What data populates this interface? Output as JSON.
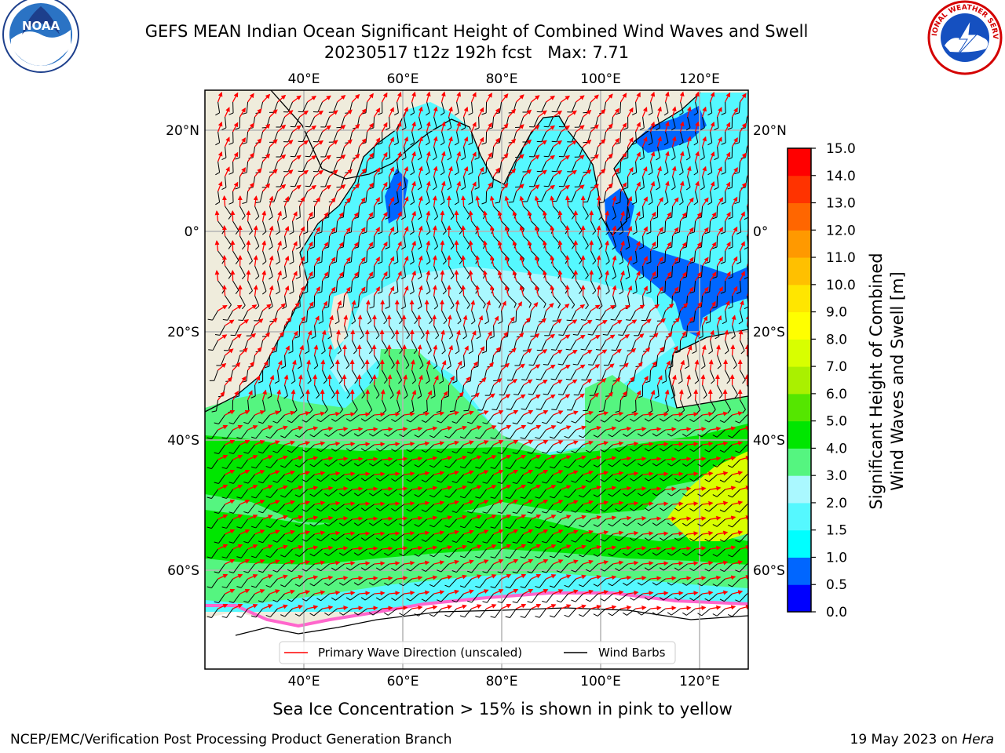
{
  "header": {
    "title_line1": "GEFS MEAN Indian Ocean Significant Height of Combined Wind Waves and Swell",
    "title_line2": "20230517 t12z 192h fcst   Max: 7.71"
  },
  "logos": {
    "left": {
      "icon": "noaa-logo",
      "text": "NOAA"
    },
    "right": {
      "icon": "nws-logo",
      "text": "NATIONAL WEATHER SERVICE"
    }
  },
  "map": {
    "lon_labels": [
      "40°E",
      "60°E",
      "80°E",
      "100°E",
      "120°E"
    ],
    "lat_labels": [
      "20°N",
      "0°",
      "20°S",
      "40°S",
      "60°S"
    ],
    "land_color": "#efecdc",
    "ocean_colors": {
      "calm": "#aaf8ff",
      "light": "#55f8ff",
      "mid": "#55f580",
      "high": "#00e600",
      "peak": "#d8ff00",
      "shelf": "#0066ff",
      "ice": "#ffffff"
    },
    "legend": {
      "wave_label": "Primary Wave Direction (unscaled)",
      "wind_label": "Wind Barbs",
      "wave_color": "#ff0000",
      "wind_color": "#000000"
    }
  },
  "colorbar": {
    "title_line1": "Significant Height of Combined",
    "title_line2": "Wind Waves and Swell [m]",
    "ticks": [
      "0.0",
      "0.5",
      "1.0",
      "1.5",
      "2.0",
      "3.0",
      "4.0",
      "5.0",
      "6.0",
      "7.0",
      "8.0",
      "9.0",
      "10.0",
      "11.0",
      "12.0",
      "13.0",
      "14.0",
      "15.0"
    ],
    "colors": [
      "#0000ff",
      "#0066ff",
      "#00ffff",
      "#55f8ff",
      "#aaf8ff",
      "#55f580",
      "#00e600",
      "#55e600",
      "#aaf000",
      "#d8ff00",
      "#ffff00",
      "#ffe600",
      "#ffc000",
      "#ff9900",
      "#ff6600",
      "#ff3300",
      "#ff0000"
    ]
  },
  "caption": "Sea Ice Concentration > 15% is shown in pink to yellow",
  "footer": {
    "left": "NCEP/EMC/Verification Post Processing Product Generation Branch",
    "right_date": "19 May 2023 on ",
    "right_host": "Hera"
  }
}
